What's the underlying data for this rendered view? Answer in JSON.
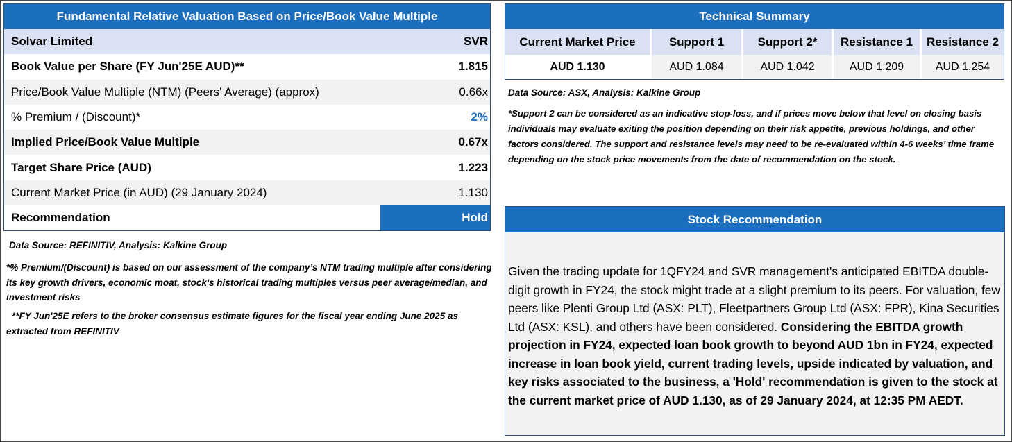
{
  "valuation": {
    "title": "Fundamental Relative Valuation Based on Price/Book Value Multiple",
    "company": "Solvar Limited",
    "ticker": "SVR",
    "rows": [
      {
        "label": "Book Value per Share (FY Jun'25E AUD)**",
        "value": "1.815"
      },
      {
        "label": "Price/Book Value Multiple (NTM)  (Peers' Average) (approx)",
        "value": "0.66x"
      },
      {
        "label": "% Premium / (Discount)*",
        "value": "2%"
      },
      {
        "label": "Implied Price/Book Value Multiple",
        "value": "0.67x"
      },
      {
        "label": "Target Share Price (AUD)",
        "value": "1.223"
      },
      {
        "label": "Current Market Price (in AUD) (29 January 2024)",
        "value": "1.130"
      },
      {
        "label": "Recommendation",
        "value": "Hold"
      }
    ],
    "source": "Data Source: REFINITIV, Analysis: Kalkine Group",
    "note1": "*% Premium/(Discount) is based on our assessment of the company’s NTM trading multiple after considering its key growth drivers, economic moat, stock's historical trading multiples versus peer average/median, and investment risks",
    "note2": "**FY Jun'25E refers to the broker consensus estimate figures for the fiscal year ending June 2025 as extracted from REFINITIV"
  },
  "technical": {
    "title": "Technical Summary",
    "headers": [
      "Current Market Price",
      "Support 1",
      "Support 2*",
      "Resistance 1",
      "Resistance 2"
    ],
    "values": [
      "AUD 1.130",
      "AUD 1.084",
      "AUD 1.042",
      "AUD 1.209",
      "AUD 1.254"
    ],
    "source": "Data Source: ASX, Analysis: Kalkine Group",
    "note": "*Support 2 can be considered as an indicative stop-loss, and if prices move below that level on closing basis individuals may evaluate exiting the position depending on their risk appetite, previous holdings, and other factors considered. The support and resistance levels may need to be re-evaluated within 4-6 weeks’ time frame depending on the stock price movements from the date of recommendation on the stock."
  },
  "recommendation": {
    "title": "Stock Recommendation",
    "text_regular": "Given the trading update for 1QFY24 and SVR management's anticipated EBITDA double-digit growth in FY24, the stock might trade at a slight premium to its peers. For valuation, few peers like Plenti Group Ltd (ASX: PLT), Fleetpartners Group Ltd (ASX: FPR), Kina Securities Ltd (ASX: KSL), and others have been considered. ",
    "text_bold": "Considering the EBITDA growth projection in FY24, expected loan book growth to beyond AUD 1bn in FY24, expected increase in loan book yield, current trading levels, upside indicated by valuation, and key risks associated to the business, a 'Hold' recommendation is given to the stock at the current market price of AUD 1.130, as of 29 January 2024, at 12:35 PM AEDT."
  },
  "colors": {
    "accent": "#1c6fbf",
    "header_bg": "#d9e1f2",
    "alt_bg": "#f2f2f2"
  }
}
